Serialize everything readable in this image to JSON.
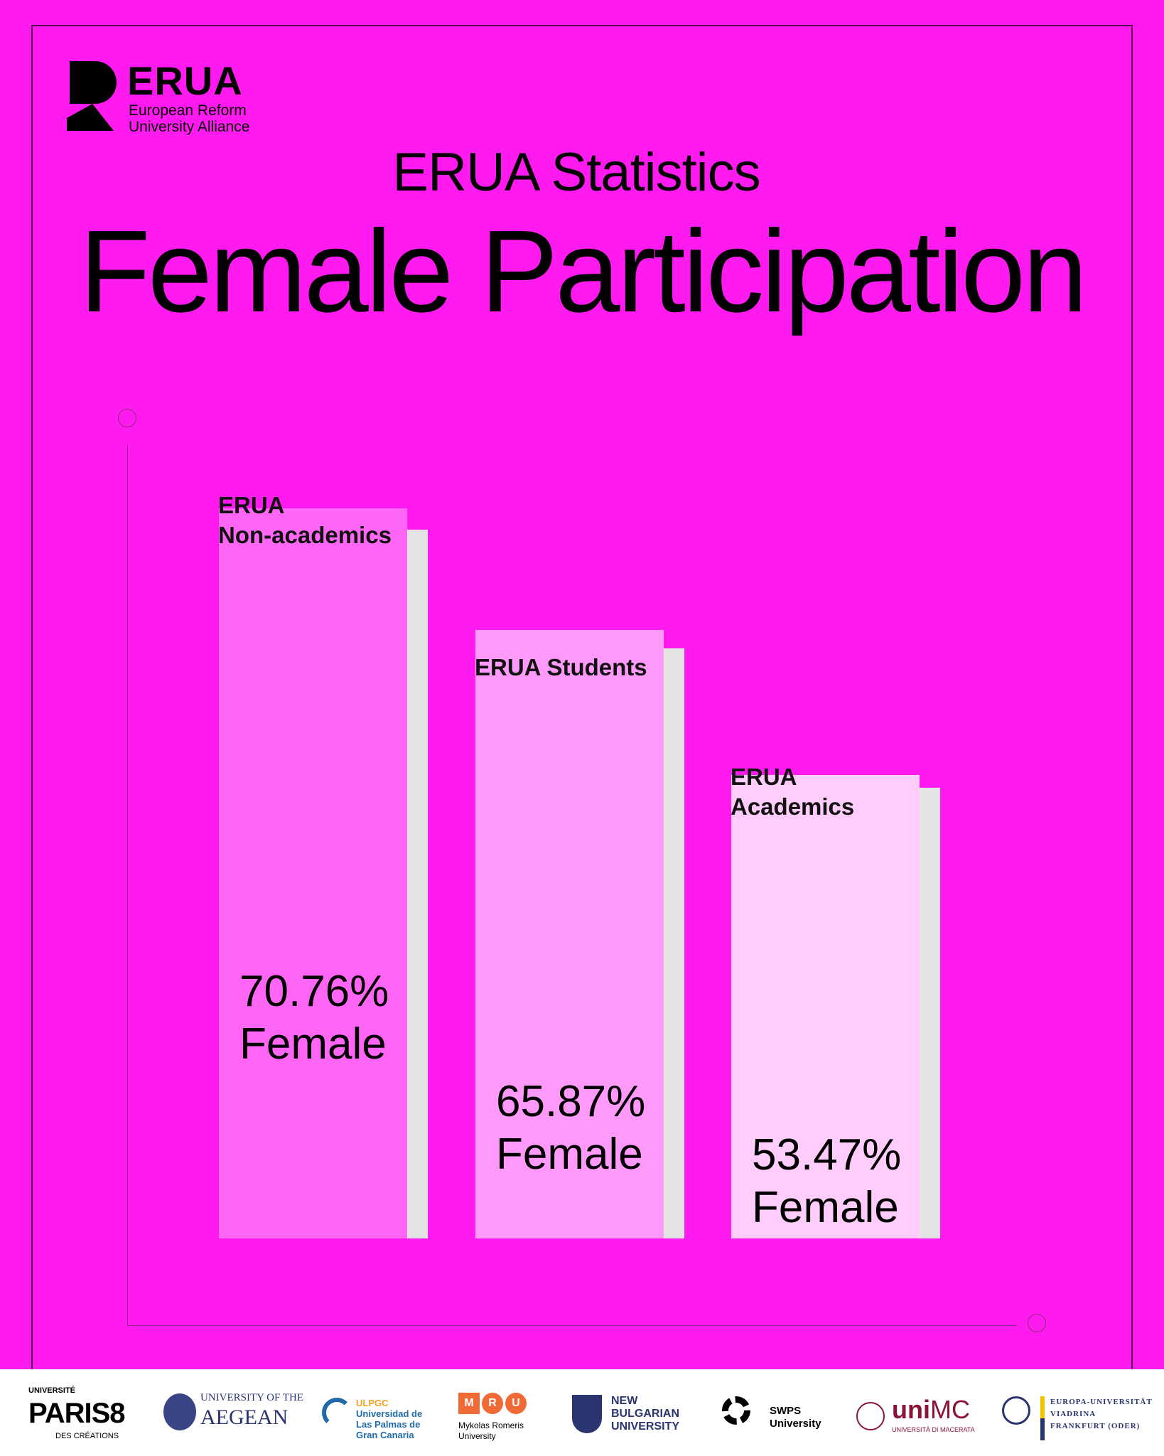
{
  "logo": {
    "wordmark": "ERUA",
    "tagline_line1": "European Reform",
    "tagline_line2": "University Alliance"
  },
  "header": {
    "subtitle": "ERUA Statistics",
    "title": "Female Participation"
  },
  "colors": {
    "background": "#FF1BEF",
    "bar1": "#FF66F5",
    "bar2": "#FF99FA",
    "bar3": "#FFCCFB",
    "shadow": "#E4E4E4"
  },
  "chart_data": {
    "type": "bar",
    "categories": [
      "ERUA Non-academics",
      "ERUA Students",
      "ERUA Academics"
    ],
    "category_lines": [
      [
        "ERUA",
        "Non-academics"
      ],
      [
        "ERUA Students"
      ],
      [
        "ERUA",
        "Academics"
      ]
    ],
    "values": [
      70.76,
      65.87,
      53.47
    ],
    "value_labels": [
      "70.76%",
      "65.87%",
      "53.47%"
    ],
    "value_suffix": "Female",
    "grid": false
  },
  "footer": {
    "partners": [
      {
        "name": "Université Paris 8",
        "lines": [
          "UNIVERSITÉ",
          "PARIS8",
          "DES CRÉATIONS"
        ]
      },
      {
        "name": "University of the Aegean",
        "lines": [
          "UNIVERSITY OF THE",
          "AEGEAN"
        ]
      },
      {
        "name": "ULPGC",
        "lines": [
          "ULPGC",
          "Universidad de",
          "Las Palmas de",
          "Gran Canaria"
        ]
      },
      {
        "name": "MRU",
        "lines": [
          "M",
          "R",
          "U",
          "Mykolas Romeris",
          "University"
        ]
      },
      {
        "name": "New Bulgarian University",
        "lines": [
          "NEW",
          "BULGARIAN",
          "UNIVERSITY"
        ]
      },
      {
        "name": "SWPS University",
        "lines": [
          "SWPS",
          "University"
        ]
      },
      {
        "name": "UNIMC",
        "lines": [
          "uni",
          "MC",
          "UNIVERSITÀ DI MACERATA"
        ]
      },
      {
        "name": "Europa-Universität Viadrina",
        "lines": [
          "EUROPA-UNIVERSITÄT",
          "VIADRINA",
          "FRANKFURT (ODER)"
        ]
      }
    ]
  }
}
